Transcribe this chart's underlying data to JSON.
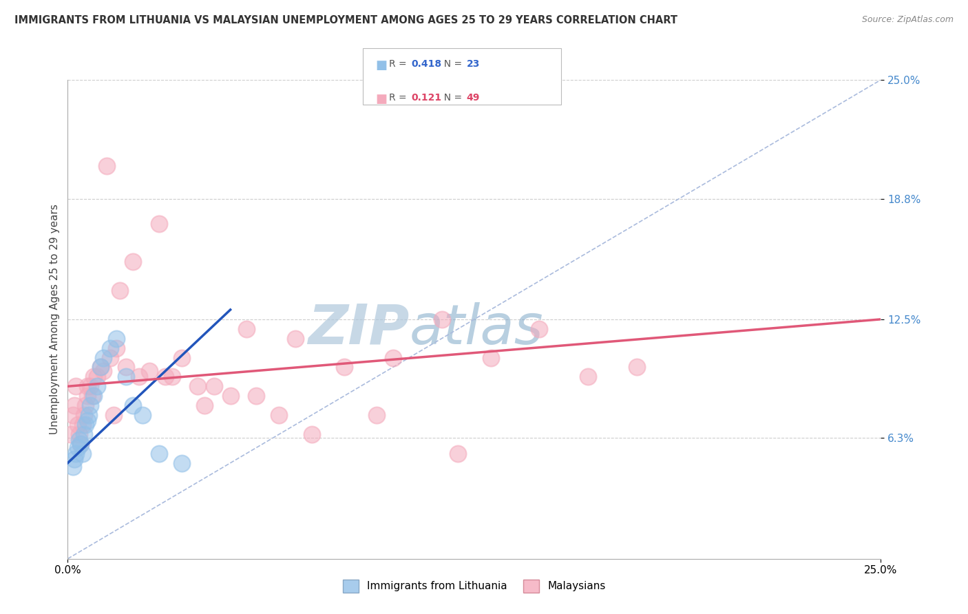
{
  "title": "IMMIGRANTS FROM LITHUANIA VS MALAYSIAN UNEMPLOYMENT AMONG AGES 25 TO 29 YEARS CORRELATION CHART",
  "source": "Source: ZipAtlas.com",
  "ylabel": "Unemployment Among Ages 25 to 29 years",
  "xlim": [
    0.0,
    25.0
  ],
  "ylim": [
    0.0,
    25.0
  ],
  "xtick_labels": [
    "0.0%",
    "25.0%"
  ],
  "ytick_positions": [
    6.3,
    12.5,
    18.8,
    25.0
  ],
  "ytick_labels": [
    "6.3%",
    "12.5%",
    "18.8%",
    "25.0%"
  ],
  "legend_blue_r_val": "0.418",
  "legend_blue_n_val": "23",
  "legend_pink_r_val": "0.121",
  "legend_pink_n_val": "49",
  "legend1_label": "Immigrants from Lithuania",
  "legend2_label": "Malaysians",
  "blue_color": "#92C0E8",
  "pink_color": "#F4AABC",
  "blue_line_color": "#2255BB",
  "pink_line_color": "#E05878",
  "diag_color": "#AABBDD",
  "watermark_zip": "ZIP",
  "watermark_atlas": "atlas",
  "watermark_color_zip": "#B0C8DC",
  "watermark_color_atlas": "#7FA8C8",
  "blue_scatter_x": [
    0.15,
    0.2,
    0.25,
    0.3,
    0.35,
    0.4,
    0.45,
    0.5,
    0.55,
    0.6,
    0.65,
    0.7,
    0.8,
    0.9,
    1.0,
    1.1,
    1.3,
    1.5,
    1.8,
    2.0,
    2.3,
    2.8,
    3.5
  ],
  "blue_scatter_y": [
    4.8,
    5.2,
    5.5,
    5.8,
    6.2,
    6.0,
    5.5,
    6.5,
    7.0,
    7.2,
    7.5,
    8.0,
    8.5,
    9.0,
    10.0,
    10.5,
    11.0,
    11.5,
    9.5,
    8.0,
    7.5,
    5.5,
    5.0
  ],
  "pink_scatter_x": [
    0.1,
    0.15,
    0.2,
    0.25,
    0.3,
    0.35,
    0.4,
    0.45,
    0.5,
    0.55,
    0.6,
    0.7,
    0.8,
    0.9,
    1.0,
    1.1,
    1.3,
    1.5,
    1.8,
    2.2,
    2.5,
    3.0,
    3.5,
    4.5,
    5.5,
    7.0,
    8.5,
    10.0,
    11.5,
    13.0,
    14.5,
    16.0,
    17.5,
    1.2,
    1.6,
    2.0,
    2.8,
    4.0,
    5.0,
    6.5,
    0.6,
    0.75,
    1.4,
    3.2,
    4.2,
    5.8,
    7.5,
    9.5,
    12.0
  ],
  "pink_scatter_y": [
    6.5,
    7.5,
    8.0,
    9.0,
    7.0,
    6.5,
    6.0,
    7.0,
    7.5,
    8.0,
    8.5,
    9.0,
    9.5,
    9.5,
    10.0,
    9.8,
    10.5,
    11.0,
    10.0,
    9.5,
    9.8,
    9.5,
    10.5,
    9.0,
    12.0,
    11.5,
    10.0,
    10.5,
    12.5,
    10.5,
    12.0,
    9.5,
    10.0,
    20.5,
    14.0,
    15.5,
    17.5,
    9.0,
    8.5,
    7.5,
    9.0,
    8.5,
    7.5,
    9.5,
    8.0,
    8.5,
    6.5,
    7.5,
    5.5
  ],
  "blue_trend_x0": 0.0,
  "blue_trend_y0": 5.0,
  "blue_trend_x1": 5.0,
  "blue_trend_y1": 13.0,
  "pink_trend_x0": 0.0,
  "pink_trend_y0": 9.0,
  "pink_trend_x1": 25.0,
  "pink_trend_y1": 12.5,
  "grid_color": "#CCCCCC",
  "background_color": "#FFFFFF"
}
